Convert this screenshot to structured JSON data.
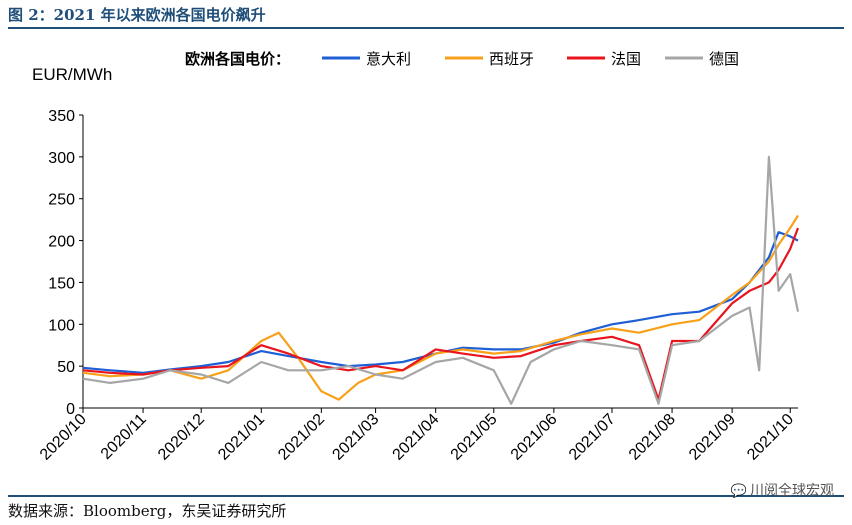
{
  "figure": {
    "title": "图 2：2021 年以来欧洲各国电价飙升",
    "source": "数据来源：Bloomberg，东吴证券研究所",
    "watermark": "川阅全球宏观",
    "watermark_icon": "wechat-icon"
  },
  "chart_data": {
    "type": "line",
    "title": "",
    "legend_title": "欧洲各国电价：",
    "legend_position": "top",
    "ylabel": "EUR/MWh",
    "xlabel": "",
    "ylim": [
      0,
      350
    ],
    "yticks": [
      0,
      50,
      100,
      150,
      200,
      250,
      300,
      350
    ],
    "x_range": [
      "2020-10-01",
      "2021-10-05"
    ],
    "xticks": [
      "2020/10",
      "2020/11",
      "2020/12",
      "2021/01",
      "2021/02",
      "2021/03",
      "2021/04",
      "2021/05",
      "2021/06",
      "2021/07",
      "2021/08",
      "2021/09",
      "2021/10"
    ],
    "xtick_dates": [
      "2020-10-01",
      "2020-11-01",
      "2020-12-01",
      "2021-01-01",
      "2021-02-01",
      "2021-03-01",
      "2021-04-01",
      "2021-05-01",
      "2021-06-01",
      "2021-07-01",
      "2021-08-01",
      "2021-09-01",
      "2021-10-01"
    ],
    "grid": false,
    "series": [
      {
        "name": "意大利",
        "color": "#1f5fd6",
        "points": [
          [
            "2020-10-01",
            48
          ],
          [
            "2020-10-15",
            45
          ],
          [
            "2020-11-01",
            42
          ],
          [
            "2020-11-15",
            46
          ],
          [
            "2020-12-01",
            50
          ],
          [
            "2020-12-15",
            55
          ],
          [
            "2021-01-01",
            68
          ],
          [
            "2021-01-15",
            62
          ],
          [
            "2021-02-01",
            55
          ],
          [
            "2021-02-15",
            50
          ],
          [
            "2021-03-01",
            52
          ],
          [
            "2021-03-15",
            55
          ],
          [
            "2021-04-01",
            65
          ],
          [
            "2021-04-15",
            72
          ],
          [
            "2021-05-01",
            70
          ],
          [
            "2021-05-15",
            70
          ],
          [
            "2021-06-01",
            78
          ],
          [
            "2021-06-15",
            90
          ],
          [
            "2021-07-01",
            100
          ],
          [
            "2021-07-15",
            105
          ],
          [
            "2021-08-01",
            112
          ],
          [
            "2021-08-15",
            115
          ],
          [
            "2021-09-01",
            130
          ],
          [
            "2021-09-10",
            150
          ],
          [
            "2021-09-20",
            180
          ],
          [
            "2021-09-25",
            210
          ],
          [
            "2021-10-01",
            205
          ],
          [
            "2021-10-05",
            200
          ]
        ]
      },
      {
        "name": "西班牙",
        "color": "#f7a11a",
        "points": [
          [
            "2020-10-01",
            42
          ],
          [
            "2020-10-15",
            38
          ],
          [
            "2020-11-01",
            40
          ],
          [
            "2020-11-15",
            45
          ],
          [
            "2020-12-01",
            35
          ],
          [
            "2020-12-15",
            45
          ],
          [
            "2021-01-01",
            80
          ],
          [
            "2021-01-10",
            90
          ],
          [
            "2021-01-20",
            60
          ],
          [
            "2021-02-01",
            20
          ],
          [
            "2021-02-10",
            10
          ],
          [
            "2021-02-20",
            30
          ],
          [
            "2021-03-01",
            40
          ],
          [
            "2021-03-15",
            45
          ],
          [
            "2021-04-01",
            65
          ],
          [
            "2021-04-15",
            70
          ],
          [
            "2021-05-01",
            65
          ],
          [
            "2021-05-15",
            68
          ],
          [
            "2021-06-01",
            80
          ],
          [
            "2021-06-15",
            88
          ],
          [
            "2021-07-01",
            95
          ],
          [
            "2021-07-15",
            90
          ],
          [
            "2021-08-01",
            100
          ],
          [
            "2021-08-15",
            105
          ],
          [
            "2021-09-01",
            135
          ],
          [
            "2021-09-10",
            150
          ],
          [
            "2021-09-20",
            175
          ],
          [
            "2021-09-25",
            195
          ],
          [
            "2021-10-01",
            215
          ],
          [
            "2021-10-05",
            230
          ]
        ]
      },
      {
        "name": "法国",
        "color": "#e8141e",
        "points": [
          [
            "2020-10-01",
            45
          ],
          [
            "2020-10-15",
            42
          ],
          [
            "2020-11-01",
            40
          ],
          [
            "2020-11-15",
            45
          ],
          [
            "2020-12-01",
            48
          ],
          [
            "2020-12-15",
            50
          ],
          [
            "2021-01-01",
            75
          ],
          [
            "2021-01-15",
            65
          ],
          [
            "2021-02-01",
            50
          ],
          [
            "2021-02-15",
            45
          ],
          [
            "2021-03-01",
            50
          ],
          [
            "2021-03-15",
            45
          ],
          [
            "2021-04-01",
            70
          ],
          [
            "2021-04-15",
            65
          ],
          [
            "2021-05-01",
            60
          ],
          [
            "2021-05-15",
            62
          ],
          [
            "2021-06-01",
            75
          ],
          [
            "2021-06-15",
            80
          ],
          [
            "2021-07-01",
            85
          ],
          [
            "2021-07-15",
            75
          ],
          [
            "2021-07-25",
            10
          ],
          [
            "2021-08-01",
            80
          ],
          [
            "2021-08-15",
            80
          ],
          [
            "2021-09-01",
            125
          ],
          [
            "2021-09-10",
            140
          ],
          [
            "2021-09-20",
            150
          ],
          [
            "2021-09-25",
            165
          ],
          [
            "2021-10-01",
            190
          ],
          [
            "2021-10-05",
            215
          ]
        ]
      },
      {
        "name": "德国",
        "color": "#a6a6a6",
        "points": [
          [
            "2020-10-01",
            35
          ],
          [
            "2020-10-15",
            30
          ],
          [
            "2020-11-01",
            35
          ],
          [
            "2020-11-15",
            45
          ],
          [
            "2020-12-01",
            40
          ],
          [
            "2020-12-15",
            30
          ],
          [
            "2021-01-01",
            55
          ],
          [
            "2021-01-15",
            45
          ],
          [
            "2021-02-01",
            45
          ],
          [
            "2021-02-15",
            50
          ],
          [
            "2021-03-01",
            40
          ],
          [
            "2021-03-15",
            35
          ],
          [
            "2021-04-01",
            55
          ],
          [
            "2021-04-15",
            60
          ],
          [
            "2021-05-01",
            45
          ],
          [
            "2021-05-10",
            5
          ],
          [
            "2021-05-20",
            55
          ],
          [
            "2021-06-01",
            70
          ],
          [
            "2021-06-15",
            80
          ],
          [
            "2021-07-01",
            75
          ],
          [
            "2021-07-15",
            70
          ],
          [
            "2021-07-25",
            5
          ],
          [
            "2021-08-01",
            75
          ],
          [
            "2021-08-15",
            80
          ],
          [
            "2021-09-01",
            110
          ],
          [
            "2021-09-10",
            120
          ],
          [
            "2021-09-15",
            45
          ],
          [
            "2021-09-20",
            300
          ],
          [
            "2021-09-25",
            140
          ],
          [
            "2021-10-01",
            160
          ],
          [
            "2021-10-05",
            115
          ]
        ]
      }
    ]
  }
}
